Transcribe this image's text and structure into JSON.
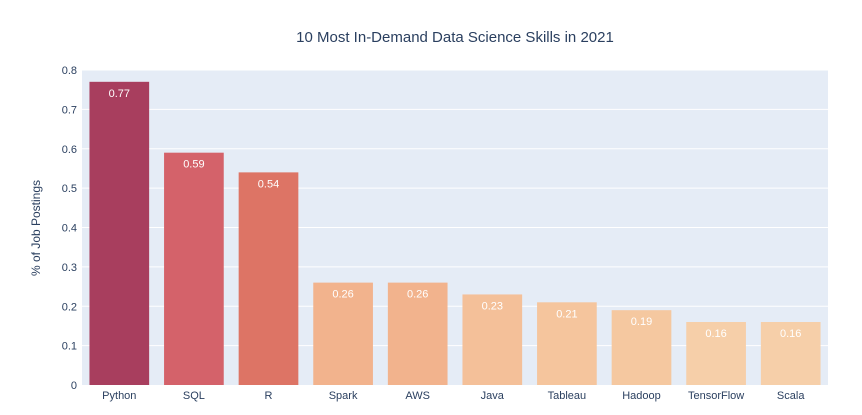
{
  "chart_data": {
    "type": "bar",
    "title": "10 Most In-Demand Data Science Skills in 2021",
    "xlabel": "",
    "ylabel": "% of Job Postings",
    "categories": [
      "Python",
      "SQL",
      "R",
      "Spark",
      "AWS",
      "Java",
      "Tableau",
      "Hadoop",
      "TensorFlow",
      "Scala"
    ],
    "values": [
      0.77,
      0.59,
      0.54,
      0.26,
      0.26,
      0.23,
      0.21,
      0.19,
      0.16,
      0.16
    ],
    "value_labels": [
      "0.77",
      "0.59",
      "0.54",
      "0.26",
      "0.26",
      "0.23",
      "0.21",
      "0.19",
      "0.16",
      "0.16"
    ],
    "bar_colors": [
      "#a83e5e",
      "#d4626a",
      "#dd7465",
      "#f2b38d",
      "#f2b38d",
      "#f4c099",
      "#f5c59d",
      "#f5c8a0",
      "#f6cfa9",
      "#f6cfa9"
    ],
    "plot_background": "#e5ecf6",
    "ylim": [
      0,
      0.8
    ],
    "yticks": [
      0,
      0.1,
      0.2,
      0.3,
      0.4,
      0.5,
      0.6,
      0.7,
      0.8
    ],
    "ytick_labels": [
      "0",
      "0.1",
      "0.2",
      "0.3",
      "0.4",
      "0.5",
      "0.6",
      "0.7",
      "0.8"
    ],
    "grid": true,
    "legend": "none"
  }
}
